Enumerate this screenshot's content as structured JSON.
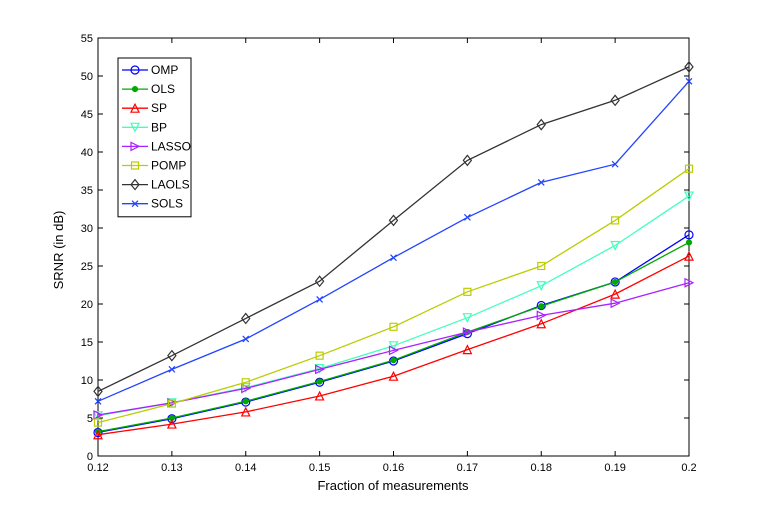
{
  "chart_data": {
    "type": "line",
    "title": "",
    "xlabel": "Fraction of measurements",
    "ylabel": "SRNR (in dB)",
    "xlim": [
      0.12,
      0.2
    ],
    "ylim": [
      0,
      55
    ],
    "x": [
      0.12,
      0.13,
      0.14,
      0.15,
      0.16,
      0.17,
      0.18,
      0.19,
      0.2
    ],
    "x_ticks": [
      0.12,
      0.13,
      0.14,
      0.15,
      0.16,
      0.17,
      0.18,
      0.19,
      0.2
    ],
    "x_tick_labels": [
      "0.12",
      "0.13",
      "0.14",
      "0.15",
      "0.16",
      "0.17",
      "0.18",
      "0.19",
      "0.2"
    ],
    "y_ticks": [
      0,
      5,
      10,
      15,
      20,
      25,
      30,
      35,
      40,
      45,
      50,
      55
    ],
    "y_tick_labels": [
      "0",
      "5",
      "10",
      "15",
      "20",
      "25",
      "30",
      "35",
      "40",
      "45",
      "50",
      "55"
    ],
    "grid": false,
    "legend_position": "top-left",
    "series": [
      {
        "name": "OMP",
        "color": "#0000ff",
        "marker": "circle",
        "values": [
          3.1,
          4.9,
          7.1,
          9.7,
          12.5,
          16.1,
          19.8,
          22.9,
          29.1
        ]
      },
      {
        "name": "OLS",
        "color": "#00aa00",
        "marker": "dot",
        "values": [
          3.2,
          5.0,
          7.2,
          9.8,
          12.6,
          16.3,
          19.7,
          22.9,
          28.1
        ]
      },
      {
        "name": "SP",
        "color": "#ff0000",
        "marker": "triangle-up",
        "values": [
          2.8,
          4.2,
          5.8,
          7.9,
          10.5,
          14.0,
          17.4,
          21.3,
          26.3
        ]
      },
      {
        "name": "BP",
        "color": "#44ffbb",
        "marker": "triangle-down",
        "values": [
          5.3,
          7.0,
          9.0,
          11.5,
          14.5,
          18.2,
          22.4,
          27.7,
          34.2
        ]
      },
      {
        "name": "LASSO",
        "color": "#aa22ff",
        "marker": "triangle-right",
        "values": [
          5.4,
          7.0,
          8.9,
          11.4,
          13.9,
          16.3,
          18.5,
          20.1,
          22.8
        ]
      },
      {
        "name": "POMP",
        "color": "#bbcc00",
        "marker": "square",
        "values": [
          4.4,
          6.9,
          9.7,
          13.2,
          17.0,
          21.6,
          25.0,
          31.0,
          37.8
        ]
      },
      {
        "name": "LAOLS",
        "color": "#333333",
        "marker": "diamond",
        "values": [
          8.5,
          13.2,
          18.1,
          23.0,
          31.0,
          38.9,
          43.6,
          46.8,
          51.2
        ]
      },
      {
        "name": "SOLS",
        "color": "#2244ff",
        "marker": "x",
        "values": [
          7.2,
          11.4,
          15.4,
          20.6,
          26.1,
          31.4,
          36.0,
          38.4,
          49.3
        ]
      }
    ]
  }
}
